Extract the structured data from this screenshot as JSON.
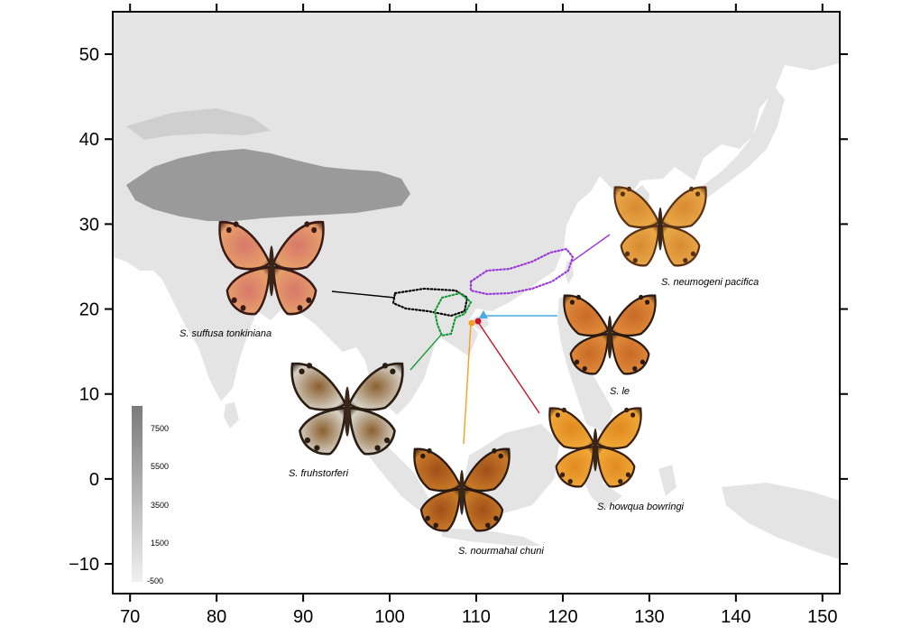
{
  "map": {
    "x_axis": {
      "min": 68,
      "max": 152,
      "ticks": [
        70,
        80,
        90,
        100,
        110,
        120,
        130,
        140,
        150
      ]
    },
    "y_axis": {
      "min": -13.5,
      "max": 55,
      "ticks": [
        -10,
        0,
        10,
        20,
        30,
        40,
        50
      ]
    },
    "background_color": "#ffffff",
    "sea_color": "#ffffff",
    "land_low_color": "#e4e4e4",
    "land_high_color": "#9a9a9a"
  },
  "elevation_legend": {
    "labels": [
      "7500",
      "5500",
      "3500",
      "1500",
      "-500"
    ],
    "color_top": "#7a7a7a",
    "color_bottom": "#f0f0f0"
  },
  "species": [
    {
      "name": "S. suffusa tonkiniana",
      "color": "#000000",
      "outline": "dotted",
      "wing_colors": [
        "#e6a06a",
        "#d8786a",
        "#3a1a14"
      ],
      "lon": 104,
      "lat": 21.5
    },
    {
      "name": "S. fruhstorferi",
      "color": "#1a9a3a",
      "outline": "dotted",
      "wing_colors": [
        "#d8d2c6",
        "#8a6030",
        "#2a1e14"
      ],
      "lon": 106,
      "lat": 19.5
    },
    {
      "name": "S. neumogeni pacifica",
      "color": "#9a3ad8",
      "outline": "dotted",
      "wing_colors": [
        "#e8a848",
        "#d88a30",
        "#5a3014"
      ],
      "lon": 114,
      "lat": 24
    },
    {
      "name": "S. le",
      "color": "#4aa8e8",
      "outline": "point",
      "wing_colors": [
        "#e08a3a",
        "#c86a28",
        "#2a1a10"
      ],
      "lon": 110.2,
      "lat": 19.8
    },
    {
      "name": "S. howqua bowringi",
      "color": "#c8142a",
      "outline": "point",
      "wing_colors": [
        "#f0a838",
        "#e08a20",
        "#3a2010"
      ],
      "lon": 109.7,
      "lat": 19.2
    },
    {
      "name": "S. nourmahal chuni",
      "color": "#f0a020",
      "outline": "point",
      "wing_colors": [
        "#c87a28",
        "#a0501a",
        "#2a1a10"
      ],
      "lon": 109.1,
      "lat": 19.0
    }
  ]
}
